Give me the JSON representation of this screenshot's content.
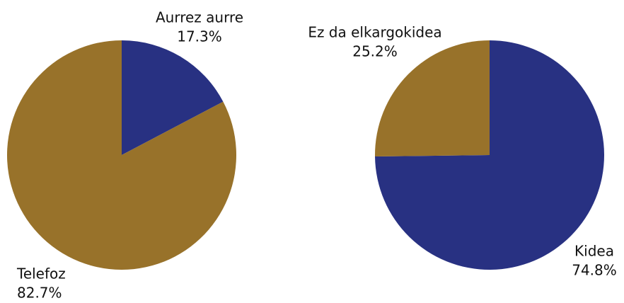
{
  "chart_data": [
    {
      "type": "pie",
      "categories": [
        "Aurrez aurre",
        "Telefoz"
      ],
      "values": [
        17.3,
        82.7
      ],
      "value_labels": [
        "17.3%",
        "82.7%"
      ],
      "colors": [
        "#283182",
        "#98722a"
      ]
    },
    {
      "type": "pie",
      "categories": [
        "Kidea",
        "Ez da elkargokidea"
      ],
      "values": [
        74.8,
        25.2
      ],
      "value_labels": [
        "74.8%",
        "25.2%"
      ],
      "colors": [
        "#283182",
        "#98722a"
      ]
    }
  ]
}
